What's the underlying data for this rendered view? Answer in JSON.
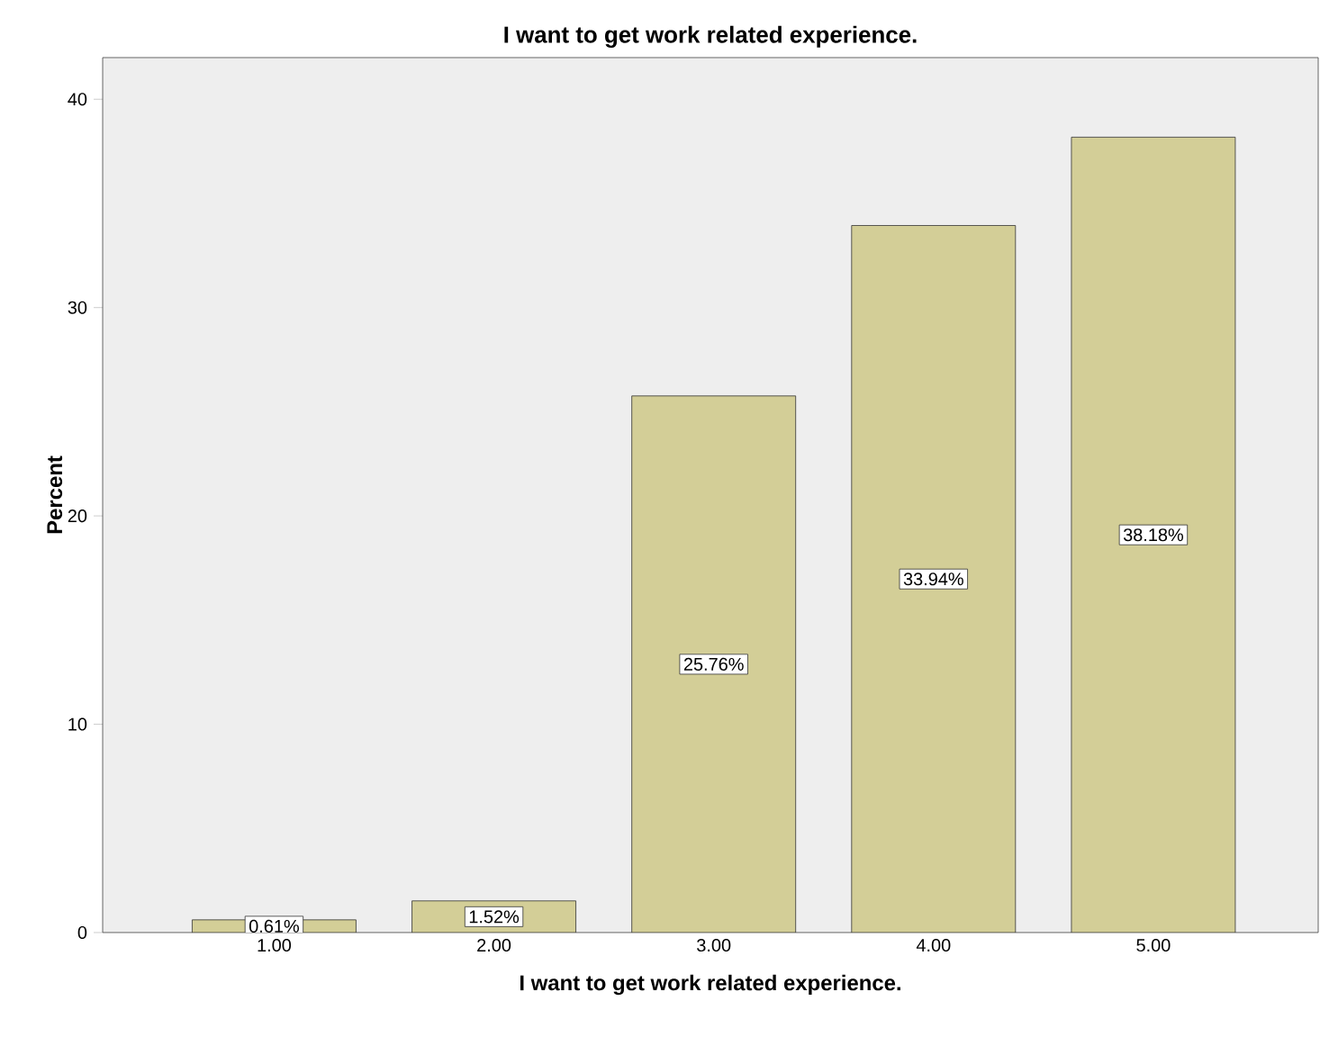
{
  "chart_data": {
    "type": "bar",
    "title": "I want to get work related experience.",
    "xlabel": "I want to get work related experience.",
    "ylabel": "Percent",
    "categories": [
      "1.00",
      "2.00",
      "3.00",
      "4.00",
      "5.00"
    ],
    "values": [
      0.61,
      1.52,
      25.76,
      33.94,
      38.18
    ],
    "value_labels": [
      "0.61%",
      "1.52%",
      "25.76%",
      "33.94%",
      "38.18%"
    ],
    "color": "#d3ce97",
    "ylim": [
      0,
      42
    ],
    "yticks": [
      0,
      10,
      20,
      30,
      40
    ]
  }
}
